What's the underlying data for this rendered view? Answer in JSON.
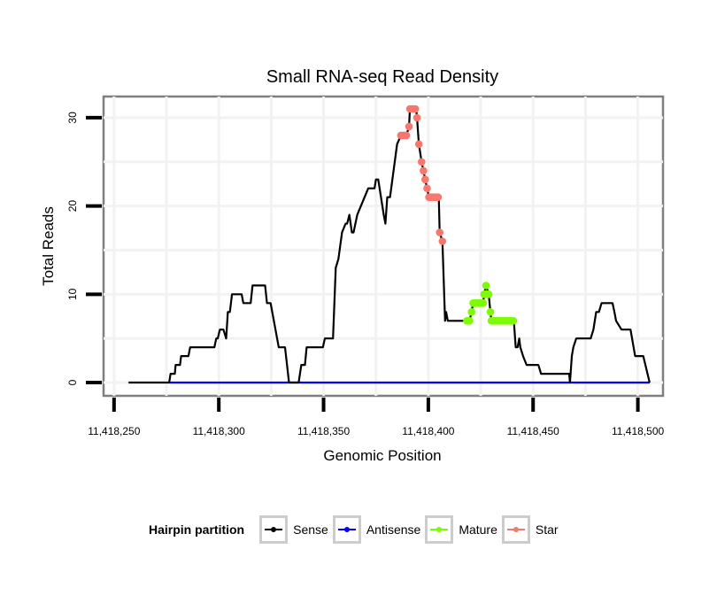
{
  "chart_data": {
    "type": "line",
    "title": "Small RNA-seq Read Density",
    "xlabel": "Genomic Position",
    "ylabel": "Total Reads",
    "x_offset": 11418000,
    "xlim": [
      11418245,
      11418512
    ],
    "ylim": [
      -1.5,
      32.4
    ],
    "x_ticks": [
      11418250,
      11418300,
      11418350,
      11418400,
      11418450,
      11418500
    ],
    "x_tick_labels": [
      "11,418,250",
      "11,418,300",
      "11,418,350",
      "11,418,400",
      "11,418,450",
      "11,418,500"
    ],
    "y_ticks": [
      0,
      10,
      20,
      30
    ],
    "y_tick_labels": [
      "0",
      "10",
      "20",
      "30"
    ],
    "grid": true,
    "legend": {
      "title": "Hairpin partition",
      "position": "bottom",
      "entries": [
        "Sense",
        "Antisense",
        "Mature",
        "Star"
      ]
    },
    "series": [
      {
        "name": "Sense",
        "color": "#000000",
        "points": [
          [
            256.9,
            0
          ],
          [
            276.3,
            0
          ],
          [
            277,
            1
          ],
          [
            279,
            1
          ],
          [
            279.4,
            2
          ],
          [
            281.5,
            2
          ],
          [
            282,
            3
          ],
          [
            285.5,
            3
          ],
          [
            286.3,
            4
          ],
          [
            297.9,
            4
          ],
          [
            298.8,
            5
          ],
          [
            299.5,
            5
          ],
          [
            300.5,
            6
          ],
          [
            302.2,
            6
          ],
          [
            303.5,
            5
          ],
          [
            304.3,
            8
          ],
          [
            305.3,
            8
          ],
          [
            306.3,
            10
          ],
          [
            310.9,
            10
          ],
          [
            311.7,
            9
          ],
          [
            315.2,
            9
          ],
          [
            316.1,
            11
          ],
          [
            322.1,
            11
          ],
          [
            323,
            9
          ],
          [
            324.7,
            9
          ],
          [
            328.6,
            4
          ],
          [
            331.6,
            4
          ],
          [
            333.5,
            0
          ],
          [
            338.1,
            0
          ],
          [
            339.4,
            2
          ],
          [
            341.1,
            2
          ],
          [
            341.9,
            4
          ],
          [
            349.7,
            4
          ],
          [
            350.6,
            5
          ],
          [
            354.5,
            5
          ],
          [
            355.8,
            13
          ],
          [
            357.1,
            14
          ],
          [
            358.8,
            17
          ],
          [
            360.5,
            18
          ],
          [
            361.2,
            18
          ],
          [
            362.3,
            19
          ],
          [
            363.5,
            17
          ],
          [
            364.3,
            17
          ],
          [
            366.1,
            19
          ],
          [
            371.3,
            22
          ],
          [
            374.3,
            22
          ],
          [
            375,
            23
          ],
          [
            376.1,
            23
          ],
          [
            378.7,
            19
          ],
          [
            379.5,
            18
          ],
          [
            380.4,
            21
          ],
          [
            381.7,
            21
          ],
          [
            383.4,
            24
          ],
          [
            385.1,
            27
          ],
          [
            386.9,
            28
          ],
          [
            389.5,
            28
          ],
          [
            390.8,
            29
          ],
          [
            391.2,
            31
          ],
          [
            394.2,
            31
          ],
          [
            394.6,
            30
          ],
          [
            395.5,
            27
          ],
          [
            396.8,
            25
          ],
          [
            397.7,
            24
          ],
          [
            398.5,
            23
          ],
          [
            399.4,
            22
          ],
          [
            400.3,
            21
          ],
          [
            405,
            21
          ],
          [
            405.4,
            17
          ],
          [
            406.7,
            16
          ],
          [
            408,
            7
          ],
          [
            408.5,
            8
          ],
          [
            409.3,
            7
          ],
          [
            418.4,
            7
          ],
          [
            419.7,
            7
          ],
          [
            420.6,
            8
          ],
          [
            421.4,
            9
          ],
          [
            426.2,
            9
          ],
          [
            426.6,
            10
          ],
          [
            427.5,
            11
          ],
          [
            428.8,
            10
          ],
          [
            429.6,
            8
          ],
          [
            430.1,
            7
          ],
          [
            440.8,
            7
          ],
          [
            441.7,
            4
          ],
          [
            442.6,
            4
          ],
          [
            443.4,
            5
          ],
          [
            443.9,
            4
          ],
          [
            445.2,
            3
          ],
          [
            446.9,
            2
          ],
          [
            452.5,
            2
          ],
          [
            453.8,
            1
          ],
          [
            467.2,
            1
          ],
          [
            467.6,
            0
          ],
          [
            468.5,
            3
          ],
          [
            469.2,
            4
          ],
          [
            470.6,
            5
          ],
          [
            477.5,
            5
          ],
          [
            478.8,
            6
          ],
          [
            480.1,
            8
          ],
          [
            481.4,
            8
          ],
          [
            482.7,
            9
          ],
          [
            487.9,
            9
          ],
          [
            488.8,
            8
          ],
          [
            489.6,
            7
          ],
          [
            492.2,
            6
          ],
          [
            496.5,
            6
          ],
          [
            498.7,
            3
          ],
          [
            502.6,
            3
          ],
          [
            505.6,
            0
          ]
        ]
      },
      {
        "name": "Antisense",
        "color": "#0000ff",
        "points": [
          [
            276.3,
            0
          ],
          [
            505.6,
            0
          ]
        ]
      },
      {
        "name": "Mature",
        "color": "#7cfc00",
        "points": [
          [
            418.4,
            7
          ],
          [
            419.1,
            7
          ],
          [
            419.7,
            7
          ],
          [
            420.6,
            8
          ],
          [
            421.4,
            9
          ],
          [
            422.3,
            9
          ],
          [
            423.2,
            9
          ],
          [
            424,
            9
          ],
          [
            424.9,
            9
          ],
          [
            425.8,
            9
          ],
          [
            426.2,
            9
          ],
          [
            426.6,
            10
          ],
          [
            427.1,
            10
          ],
          [
            427.5,
            11
          ],
          [
            428,
            10
          ],
          [
            428.8,
            10
          ],
          [
            429.6,
            8
          ],
          [
            430.1,
            7
          ],
          [
            431,
            7
          ],
          [
            431.9,
            7
          ],
          [
            432.8,
            7
          ],
          [
            433.6,
            7
          ],
          [
            434.5,
            7
          ],
          [
            435.4,
            7
          ],
          [
            436.3,
            7
          ],
          [
            437.1,
            7
          ],
          [
            438,
            7
          ],
          [
            438.9,
            7
          ],
          [
            439.7,
            7
          ],
          [
            440.6,
            7
          ]
        ]
      },
      {
        "name": "Star",
        "color": "#f8766d",
        "points": [
          [
            386.9,
            28
          ],
          [
            387.8,
            28
          ],
          [
            388.7,
            28
          ],
          [
            389.5,
            28
          ],
          [
            390.8,
            29
          ],
          [
            391.2,
            31
          ],
          [
            392.1,
            31
          ],
          [
            392.9,
            31
          ],
          [
            393.8,
            31
          ],
          [
            394.6,
            30
          ],
          [
            395.5,
            27
          ],
          [
            396.8,
            25
          ],
          [
            397.7,
            24
          ],
          [
            398.5,
            23
          ],
          [
            399.4,
            22
          ],
          [
            400.3,
            21
          ],
          [
            401.2,
            21
          ],
          [
            402,
            21
          ],
          [
            402.9,
            21
          ],
          [
            403.8,
            21
          ],
          [
            404.6,
            21
          ],
          [
            405.4,
            17
          ],
          [
            406.7,
            16
          ]
        ]
      }
    ]
  }
}
